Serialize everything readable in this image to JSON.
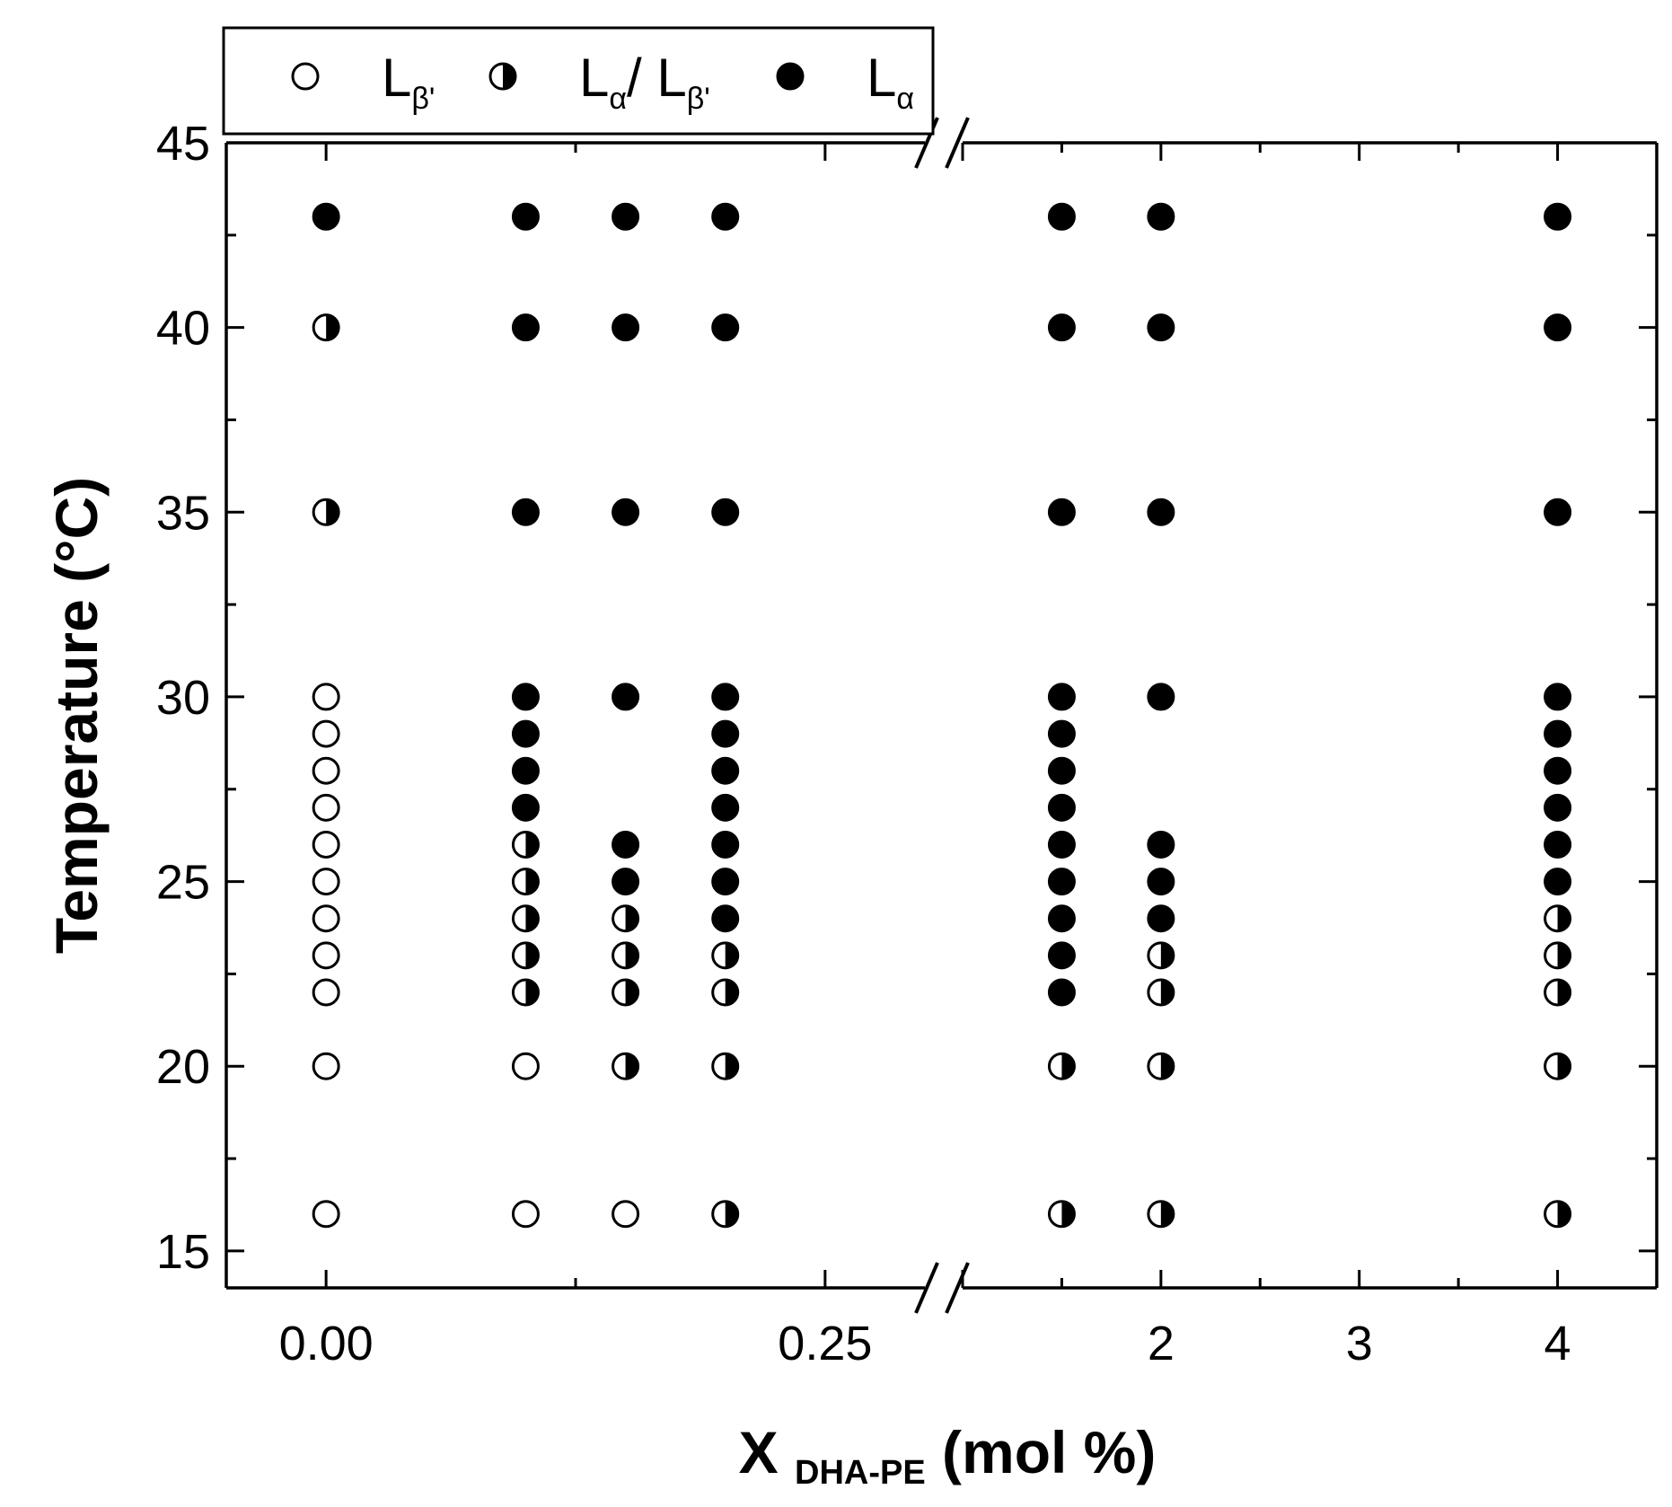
{
  "chart_data": {
    "type": "scatter",
    "title": "",
    "xlabel": {
      "main": "X",
      "subscript": "DHA-PE",
      "unit": "(mol %)"
    },
    "ylabel": "Temperature (°C)",
    "ylim": [
      14,
      45
    ],
    "yticks": [
      "15",
      "20",
      "25",
      "30",
      "35",
      "40",
      "45"
    ],
    "x_axis_broken": true,
    "x_segments": [
      {
        "range": [
          -0.05,
          0.3
        ],
        "ticks": [
          "0.00",
          "0.25"
        ]
      },
      {
        "range": [
          1.0,
          4.5
        ],
        "ticks": [
          "2",
          "3",
          "4"
        ]
      }
    ],
    "x_categories": [
      "0",
      "0.1",
      "0.15",
      "0.2",
      "1.5",
      "2",
      "4"
    ],
    "legend": {
      "placement": "top-left",
      "entries": [
        {
          "key": "Lb",
          "symbol": "open",
          "main": "L",
          "sub": "β'"
        },
        {
          "key": "La_Lb",
          "symbol": "half",
          "main": "L",
          "sub": "α",
          "sep": "/ L",
          "sub2": "β'"
        },
        {
          "key": "La",
          "symbol": "filled",
          "main": "L",
          "sub": "α"
        }
      ]
    },
    "phases": {
      "0": {
        "16": "Lb",
        "20": "Lb",
        "22": "Lb",
        "23": "Lb",
        "24": "Lb",
        "25": "Lb",
        "26": "Lb",
        "27": "Lb",
        "28": "Lb",
        "29": "Lb",
        "30": "Lb",
        "35": "La_Lb",
        "40": "La_Lb",
        "43": "La"
      },
      "0.1": {
        "16": "Lb",
        "20": "Lb",
        "22": "La_Lb",
        "23": "La_Lb",
        "24": "La_Lb",
        "25": "La_Lb",
        "26": "La_Lb",
        "27": "La",
        "28": "La",
        "29": "La",
        "30": "La",
        "35": "La",
        "40": "La",
        "43": "La"
      },
      "0.15": {
        "16": "Lb",
        "20": "La_Lb",
        "22": "La_Lb",
        "23": "La_Lb",
        "24": "La_Lb",
        "25": "La",
        "26": "La",
        "30": "La",
        "35": "La",
        "40": "La",
        "43": "La"
      },
      "0.2": {
        "16": "La_Lb",
        "20": "La_Lb",
        "22": "La_Lb",
        "23": "La_Lb",
        "24": "La",
        "25": "La",
        "26": "La",
        "27": "La",
        "28": "La",
        "29": "La",
        "30": "La",
        "35": "La",
        "40": "La",
        "43": "La"
      },
      "1.5": {
        "16": "La_Lb",
        "20": "La_Lb",
        "22": "La",
        "23": "La",
        "24": "La",
        "25": "La",
        "26": "La",
        "27": "La",
        "28": "La",
        "29": "La",
        "30": "La",
        "35": "La",
        "40": "La",
        "43": "La"
      },
      "2": {
        "16": "La_Lb",
        "20": "La_Lb",
        "22": "La_Lb",
        "23": "La_Lb",
        "24": "La",
        "25": "La",
        "26": "La",
        "30": "La",
        "35": "La",
        "40": "La",
        "43": "La"
      },
      "4": {
        "16": "La_Lb",
        "20": "La_Lb",
        "22": "La_Lb",
        "23": "La_Lb",
        "24": "La_Lb",
        "25": "La",
        "26": "La",
        "27": "La",
        "28": "La",
        "29": "La",
        "30": "La",
        "35": "La",
        "40": "La",
        "43": "La"
      }
    }
  }
}
